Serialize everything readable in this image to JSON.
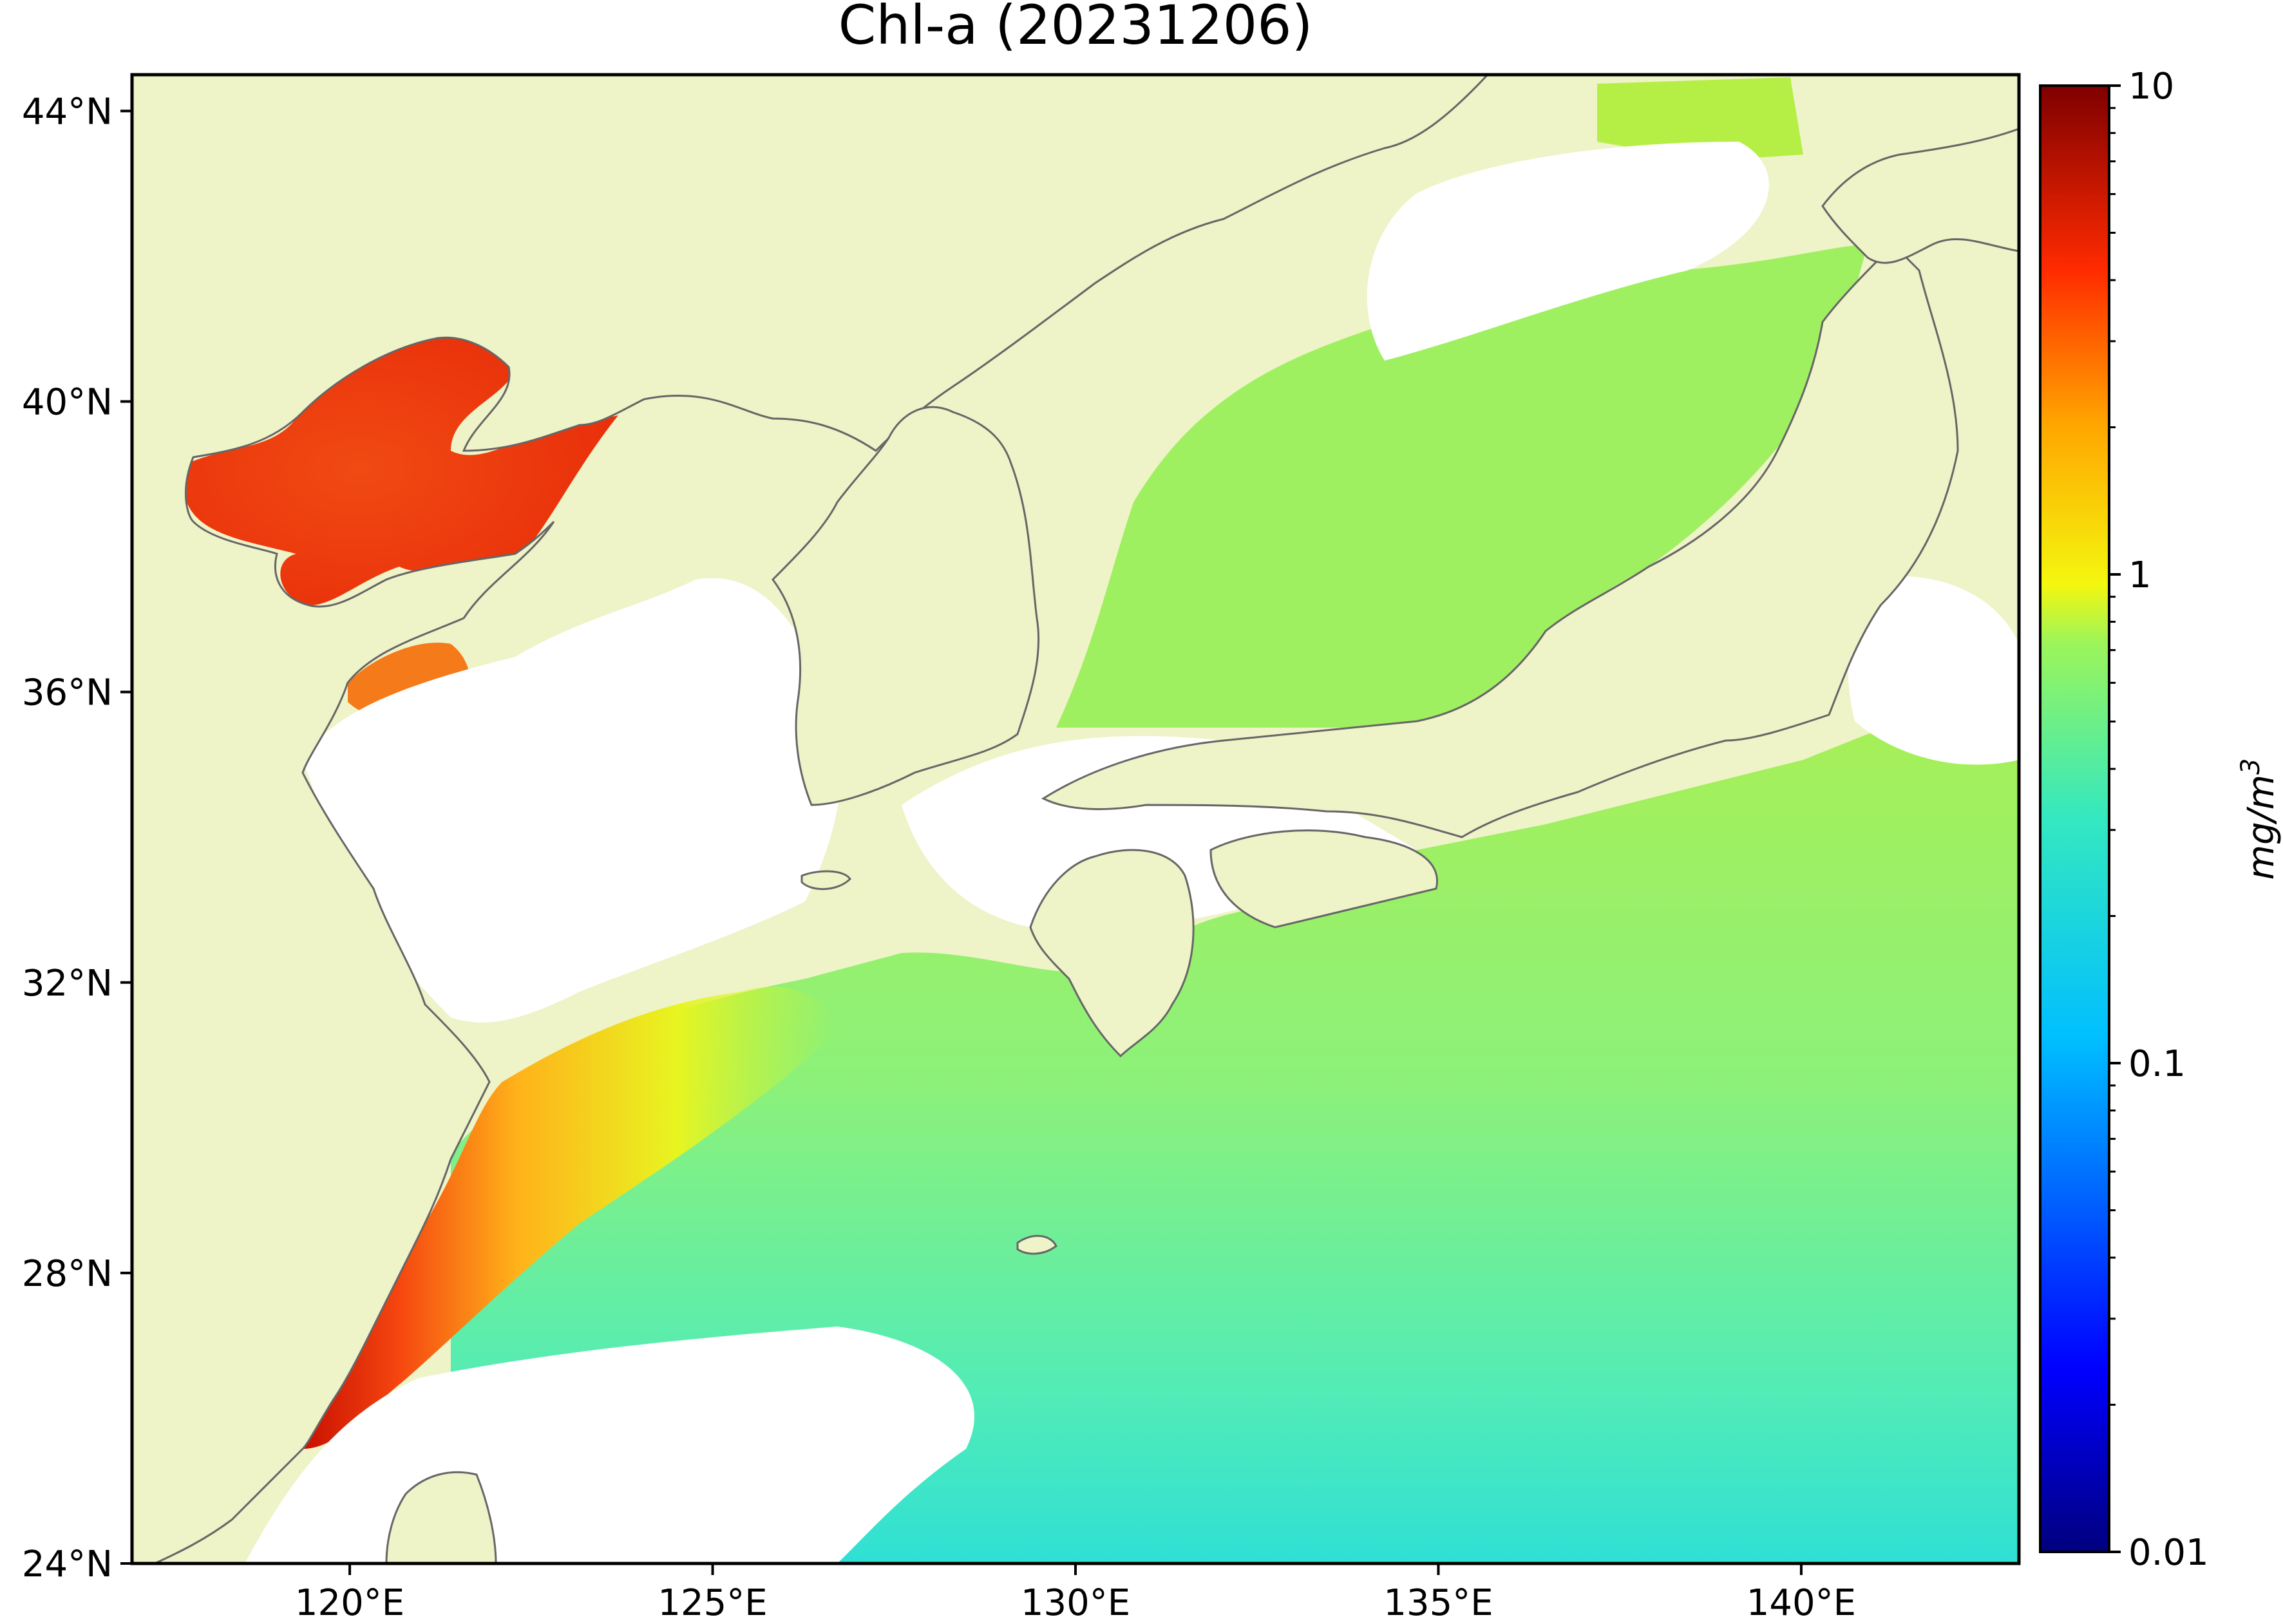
{
  "title": "Chl-a (20231206)",
  "map": {
    "lon_range": [
      117,
      143
    ],
    "lat_range": [
      24,
      44.5
    ],
    "lon_ticks": [
      {
        "value": 120,
        "label": "120°E"
      },
      {
        "value": 125,
        "label": "125°E"
      },
      {
        "value": 130,
        "label": "130°E"
      },
      {
        "value": 135,
        "label": "135°E"
      },
      {
        "value": 140,
        "label": "140°E"
      }
    ],
    "lat_ticks": [
      {
        "value": 44,
        "label": "44°N"
      },
      {
        "value": 40,
        "label": "40°N"
      },
      {
        "value": 36,
        "label": "36°N"
      },
      {
        "value": 32,
        "label": "32°N"
      },
      {
        "value": 28,
        "label": "28°N"
      },
      {
        "value": 24,
        "label": "24°N"
      }
    ],
    "land_color": "#eff3c8",
    "coast_color": "#666666",
    "nodata_color": "#ffffff"
  },
  "colorbar": {
    "label": "mg/m",
    "label_exponent": "3",
    "scale": "log",
    "range": [
      0.01,
      10
    ],
    "colormap": "jet",
    "major_ticks": [
      {
        "value": 10,
        "label": "10"
      },
      {
        "value": 1,
        "label": "1"
      },
      {
        "value": 0.1,
        "label": "0.1"
      },
      {
        "value": 0.01,
        "label": "0.01"
      }
    ]
  }
}
